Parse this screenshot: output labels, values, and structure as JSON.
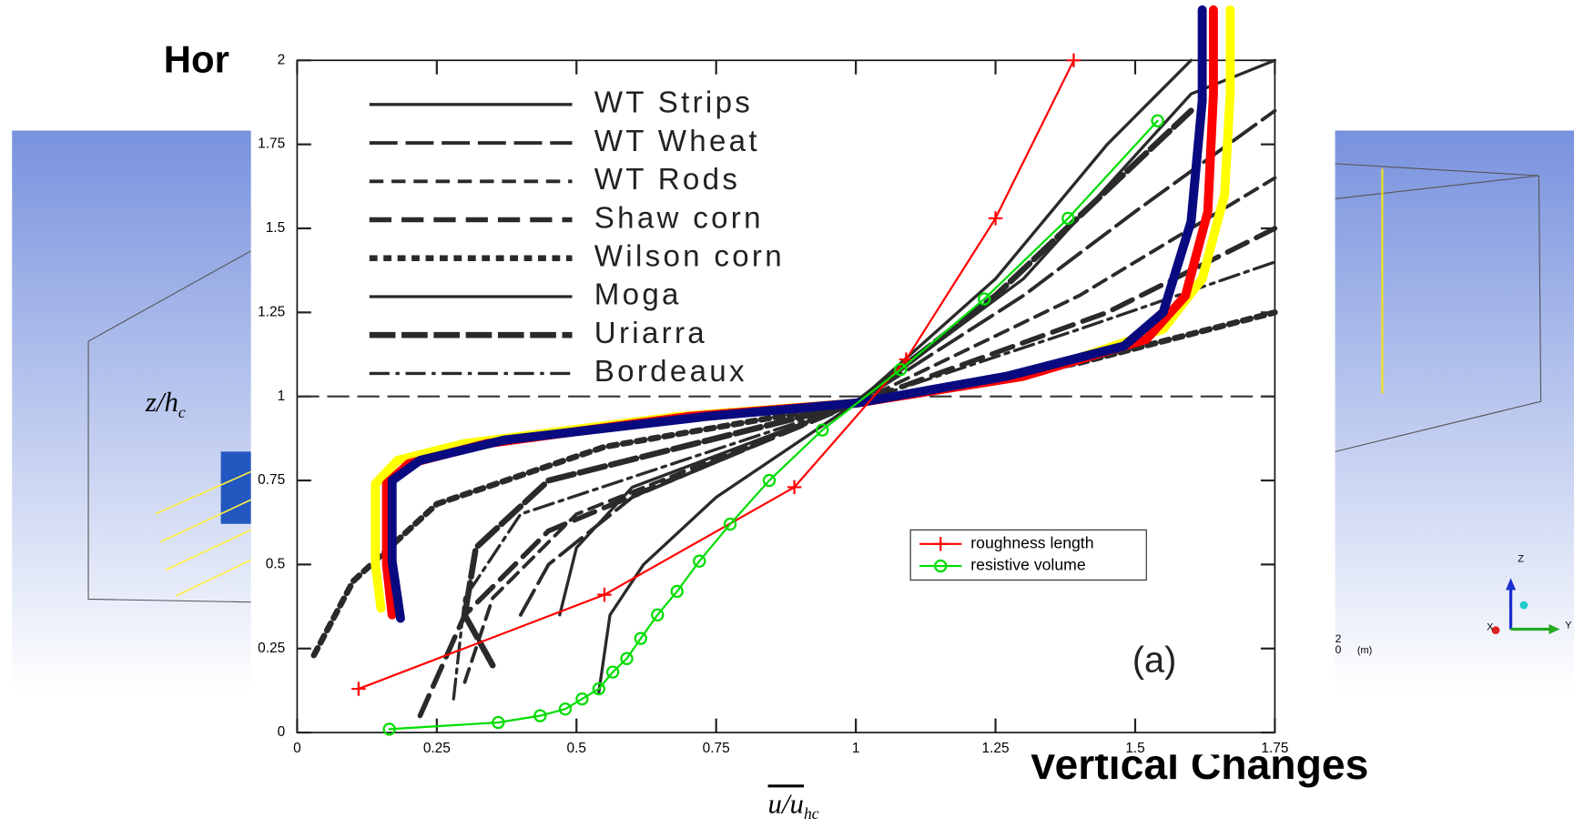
{
  "chart_data": {
    "type": "line",
    "background": {
      "left_title": "Hor",
      "right_title": "Vertical Changes",
      "axis_triad": {
        "z": "Z",
        "x": "X",
        "y": "Y"
      },
      "scale": {
        "top": "2",
        "bottom": "0",
        "unit": "(m)"
      }
    },
    "xlabel": "u/u",
    "xlabel_sub": "hc",
    "ylabel": "z/h",
    "ylabel_sub": "c",
    "annotation": "(a)",
    "xlim": [
      0,
      1.75
    ],
    "ylim": [
      0,
      2
    ],
    "xticks": [
      0,
      0.25,
      0.5,
      0.75,
      1,
      1.25,
      1.5,
      1.75
    ],
    "yticks": [
      0,
      0.25,
      0.5,
      0.75,
      1,
      1.25,
      1.5,
      1.75,
      2
    ],
    "hline": 1,
    "legend": "lower right",
    "reference_legend": "upper left",
    "reference_series": [
      {
        "name": "WT  Strips",
        "color": "#2a2a2a",
        "x": [
          0.54,
          0.56,
          0.62,
          0.75,
          1.0,
          1.25,
          1.45,
          1.6
        ],
        "values": [
          0.12,
          0.35,
          0.5,
          0.7,
          0.98,
          1.35,
          1.75,
          2.0
        ]
      },
      {
        "name": "WT  Wheat",
        "color": "#2a2a2a",
        "x": [
          0.4,
          0.45,
          0.6,
          1.0,
          1.3,
          1.5,
          1.75
        ],
        "values": [
          0.35,
          0.5,
          0.7,
          0.98,
          1.3,
          1.55,
          1.85
        ]
      },
      {
        "name": "WT  Rods",
        "color": "#2a2a2a",
        "x": [
          0.3,
          0.35,
          0.5,
          1.0,
          1.4,
          1.75
        ],
        "values": [
          0.15,
          0.4,
          0.65,
          0.98,
          1.3,
          1.65
        ]
      },
      {
        "name": "Shaw  corn",
        "color": "#2a2a2a",
        "x": [
          0.22,
          0.3,
          0.45,
          1.0,
          1.45,
          1.75
        ],
        "values": [
          0.05,
          0.35,
          0.6,
          0.98,
          1.25,
          1.5
        ]
      },
      {
        "name": "Wilson  corn",
        "color": "#2a2a2a",
        "x": [
          0.03,
          0.1,
          0.25,
          0.55,
          1.0,
          1.4,
          1.75
        ],
        "values": [
          0.23,
          0.45,
          0.68,
          0.85,
          0.98,
          1.1,
          1.25
        ]
      },
      {
        "name": "Moga",
        "color": "#2a2a2a",
        "x": [
          0.47,
          0.5,
          0.6,
          1.0,
          1.3,
          1.6,
          1.75
        ],
        "values": [
          0.35,
          0.55,
          0.73,
          0.98,
          1.35,
          1.9,
          2.0
        ]
      },
      {
        "name": "Uriarra",
        "color": "#2a2a2a",
        "x": [
          0.35,
          0.3,
          0.32,
          0.45,
          1.0,
          1.25,
          1.6
        ],
        "values": [
          0.2,
          0.35,
          0.55,
          0.75,
          0.98,
          1.3,
          1.85
        ]
      },
      {
        "name": "Bordeaux",
        "color": "#2a2a2a",
        "x": [
          0.28,
          0.3,
          0.4,
          1.0,
          1.4,
          1.75
        ],
        "values": [
          0.1,
          0.4,
          0.65,
          0.98,
          1.2,
          1.4
        ]
      }
    ],
    "series": [
      {
        "color": "#ffff00",
        "x": [
          0.15,
          0.14,
          0.14,
          0.18,
          0.3,
          0.68,
          1.0,
          1.32,
          1.55,
          1.62,
          1.66,
          1.67,
          1.67
        ],
        "values": [
          0.37,
          0.5,
          0.74,
          0.81,
          0.86,
          0.94,
          0.98,
          1.07,
          1.2,
          1.35,
          1.6,
          1.9,
          2.15
        ]
      },
      {
        "color": "#ff0000",
        "x": [
          0.17,
          0.16,
          0.16,
          0.2,
          0.34,
          0.7,
          1.0,
          1.3,
          1.52,
          1.59,
          1.63,
          1.64,
          1.64
        ],
        "values": [
          0.35,
          0.5,
          0.74,
          0.8,
          0.86,
          0.94,
          0.98,
          1.06,
          1.17,
          1.3,
          1.55,
          1.9,
          2.15
        ]
      },
      {
        "color": "#0a0a80",
        "x": [
          0.185,
          0.17,
          0.17,
          0.22,
          0.37,
          0.73,
          1.0,
          1.27,
          1.48,
          1.55,
          1.6,
          1.62,
          1.62
        ],
        "values": [
          0.34,
          0.51,
          0.75,
          0.81,
          0.87,
          0.94,
          0.98,
          1.06,
          1.15,
          1.25,
          1.52,
          1.88,
          2.15
        ]
      },
      {
        "name": "roughness length",
        "color": "#ff0000",
        "marker": "+",
        "x": [
          0.11,
          0.55,
          0.89,
          1.09,
          1.25,
          1.39
        ],
        "values": [
          0.13,
          0.41,
          0.73,
          1.11,
          1.53,
          2.0
        ]
      },
      {
        "name": "resistive volume",
        "color": "#00dd00",
        "marker": "o",
        "x": [
          0.165,
          0.36,
          0.435,
          0.48,
          0.51,
          0.54,
          0.565,
          0.59,
          0.615,
          0.645,
          0.68,
          0.72,
          0.775,
          0.845,
          0.94,
          1.08,
          1.23,
          1.38,
          1.54
        ],
        "values": [
          0.01,
          0.03,
          0.05,
          0.07,
          0.1,
          0.13,
          0.18,
          0.22,
          0.28,
          0.35,
          0.42,
          0.51,
          0.62,
          0.75,
          0.9,
          1.08,
          1.29,
          1.53,
          1.82
        ]
      }
    ]
  }
}
